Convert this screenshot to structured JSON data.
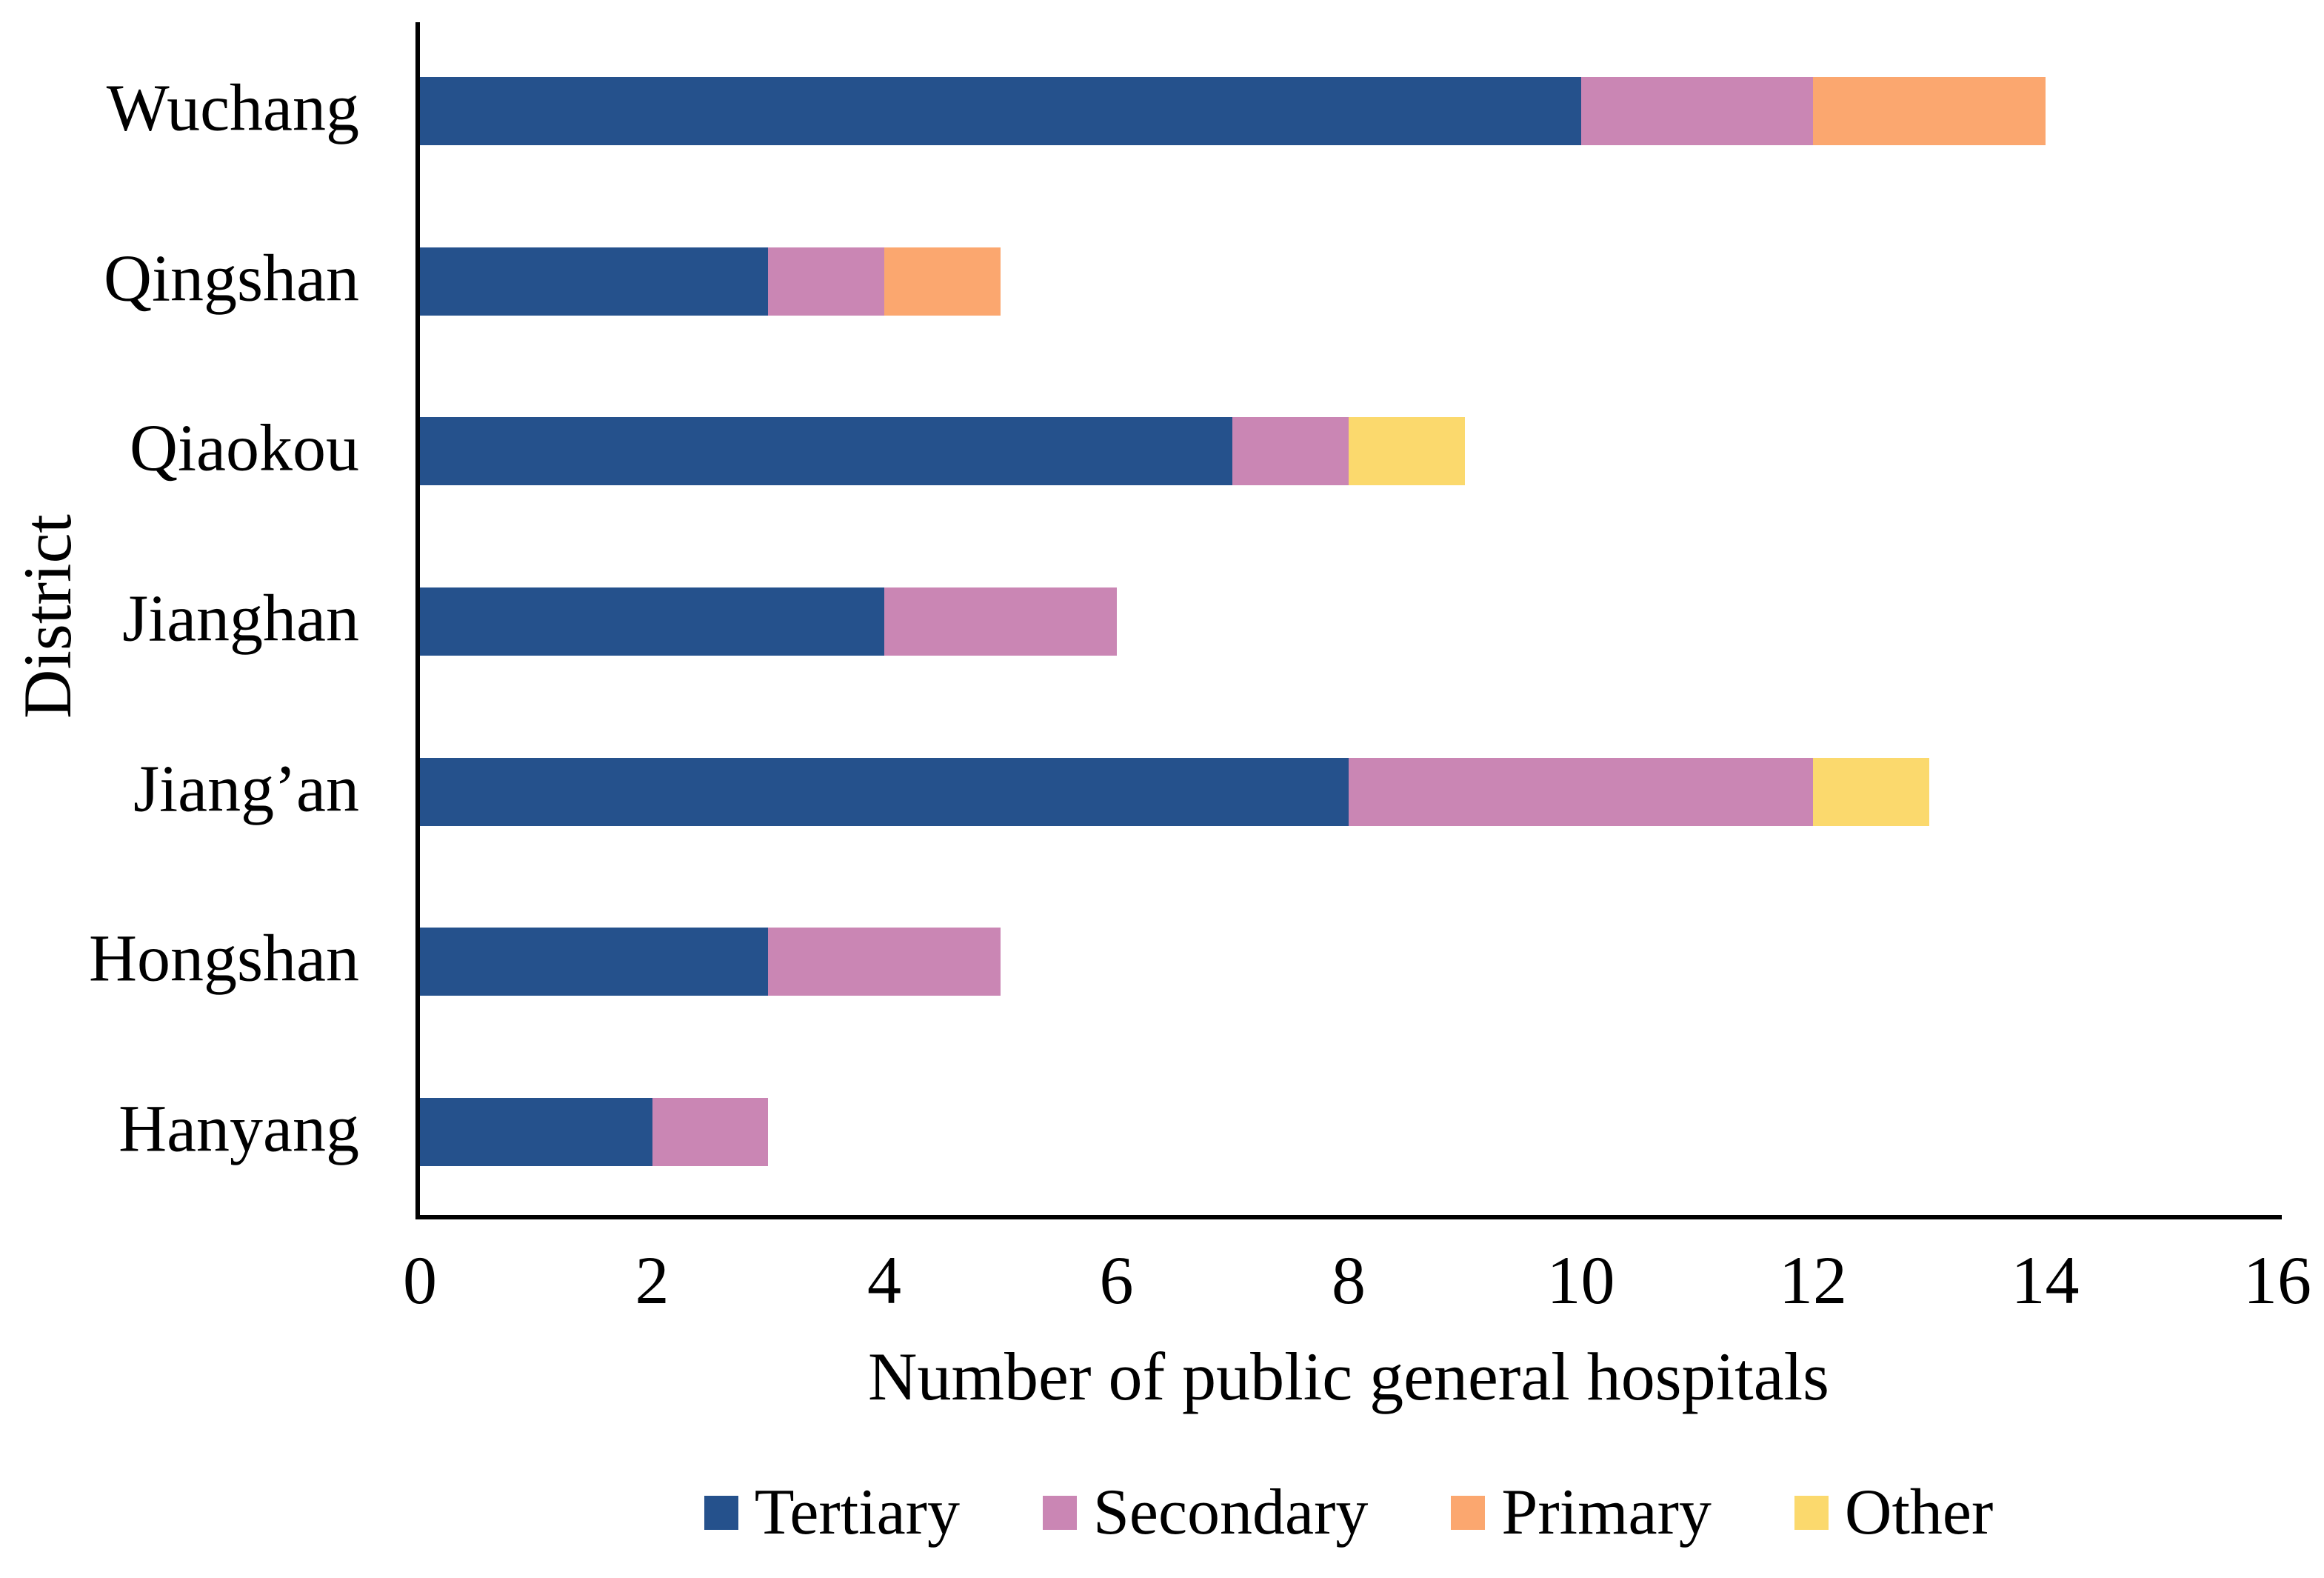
{
  "chart_data": {
    "type": "bar",
    "orientation": "horizontal",
    "stacked": true,
    "title": "",
    "xlabel": "Number of public general hospitals",
    "ylabel": "District",
    "categories": [
      "Wuchang",
      "Qingshan",
      "Qiaokou",
      "Jianghan",
      "Jiang’an",
      "Hongshan",
      "Hanyang"
    ],
    "series": [
      {
        "name": "Tertiary",
        "color": "#25518C",
        "values": [
          10,
          3,
          7,
          4,
          8,
          3,
          2
        ]
      },
      {
        "name": "Secondary",
        "color": "#CA86B4",
        "values": [
          2,
          1,
          1,
          2,
          4,
          2,
          1
        ]
      },
      {
        "name": "Primary",
        "color": "#FBA76F",
        "values": [
          2,
          1,
          0,
          0,
          0,
          0,
          0
        ]
      },
      {
        "name": "Other",
        "color": "#FBD96D",
        "values": [
          0,
          0,
          1,
          0,
          1,
          0,
          0
        ]
      }
    ],
    "totals": [
      14,
      5,
      9,
      6,
      13,
      5,
      3
    ],
    "xlim": [
      0,
      16
    ],
    "xticks": [
      "0",
      "2",
      "4",
      "6",
      "8",
      "10",
      "12",
      "14",
      "16"
    ],
    "grid": false,
    "legend_position": "bottom",
    "axis_color": "#000000",
    "text_color": "#000000",
    "background_color": "#FFFFFF"
  }
}
